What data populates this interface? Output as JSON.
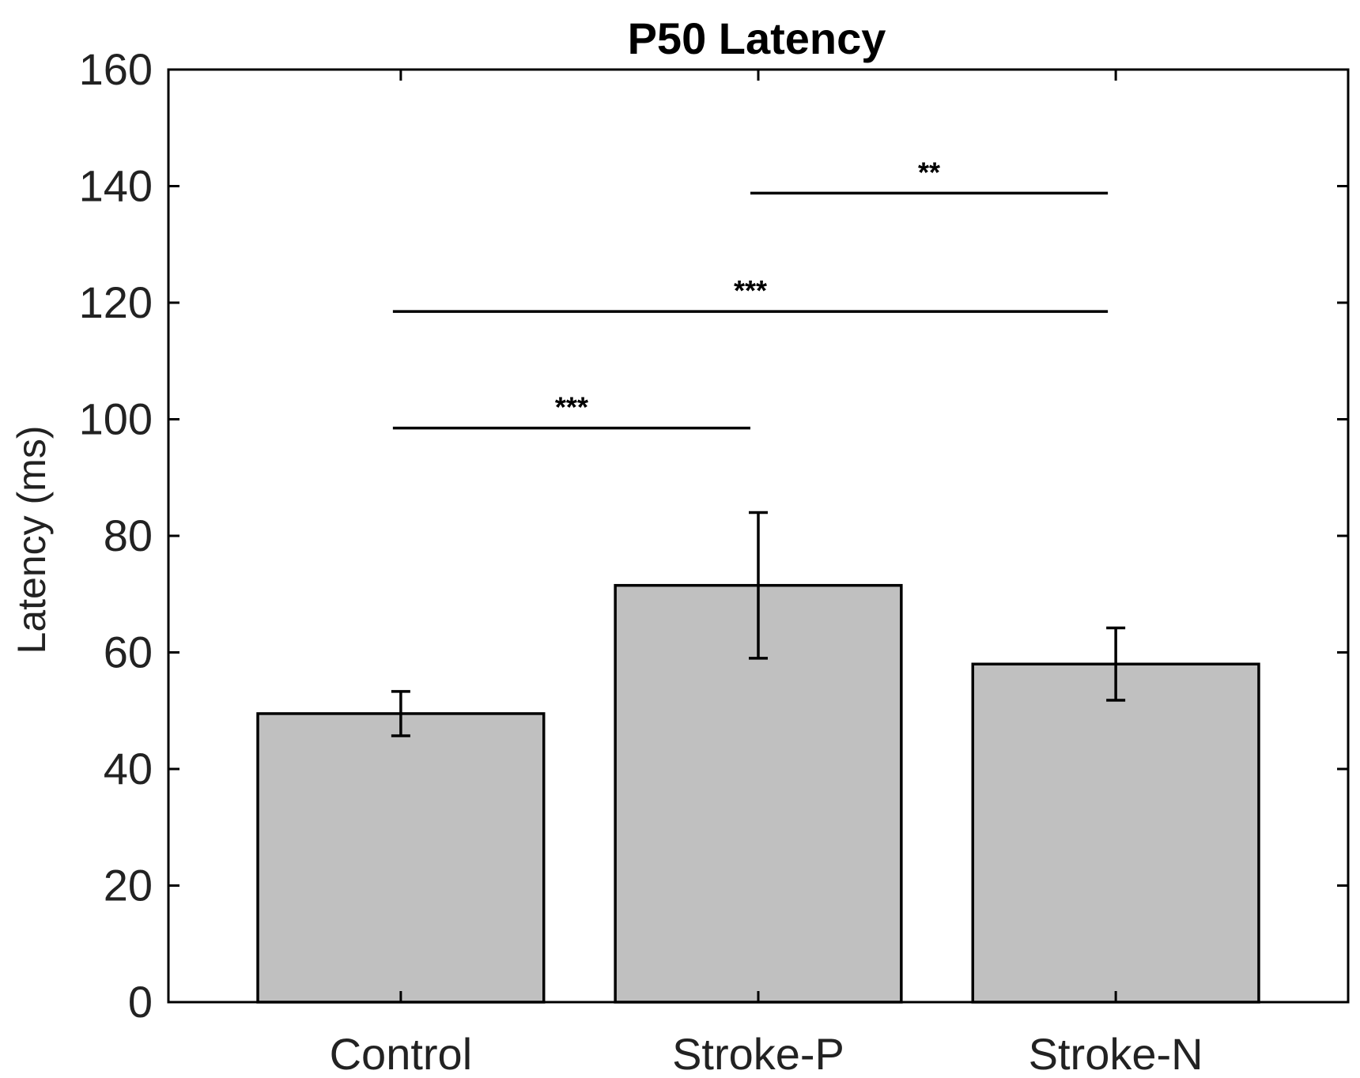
{
  "chart_data": {
    "type": "bar",
    "title": "P50 Latency",
    "xlabel": "",
    "ylabel": "Latency (ms)",
    "ylim": [
      0,
      160
    ],
    "yticks": [
      0,
      20,
      40,
      60,
      80,
      100,
      120,
      140,
      160
    ],
    "categories": [
      "Control",
      "Stroke-P",
      "Stroke-N"
    ],
    "values": [
      49.5,
      71.5,
      58
    ],
    "error_low": [
      45.7,
      59,
      51.8
    ],
    "error_high": [
      53.3,
      84,
      64.2
    ],
    "bar_color": "#c0c0c0",
    "grid": false,
    "significance": [
      {
        "from": 0,
        "to": 1,
        "y": 98.5,
        "label": "***"
      },
      {
        "from": 0,
        "to": 2,
        "y": 118.5,
        "label": "***"
      },
      {
        "from": 1,
        "to": 2,
        "y": 138.8,
        "label": "**"
      }
    ]
  }
}
